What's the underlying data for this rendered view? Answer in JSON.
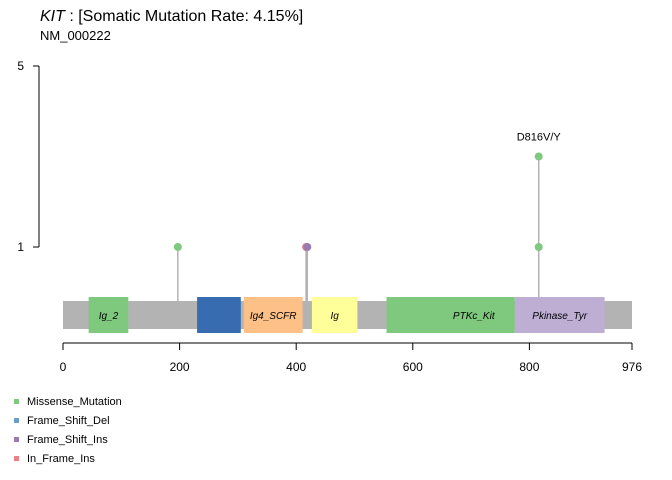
{
  "header": {
    "gene": "KIT",
    "title_rest": ": [Somatic Mutation Rate: 4.15%]",
    "subtitle": "NM_000222"
  },
  "legend": {
    "items": [
      {
        "label": "Missense_Mutation",
        "color": "#7fc97f"
      },
      {
        "label": "Frame_Shift_Del",
        "color": "#6a9ec8"
      },
      {
        "label": "Frame_Shift_Ins",
        "color": "#9a7bb0"
      },
      {
        "label": "In_Frame_Ins",
        "color": "#e8838a"
      }
    ]
  },
  "chart_data": {
    "type": "lollipop",
    "protein_length": 976,
    "x_ticks": [
      0,
      200,
      400,
      600,
      800,
      976
    ],
    "y_ticks": [
      1,
      5
    ],
    "backbone_color": "#b3b3b3",
    "domains": [
      {
        "name": "Ig_2",
        "start": 44,
        "end": 112,
        "color": "#7fc97f"
      },
      {
        "name": "",
        "start": 230,
        "end": 305,
        "color": "#386cb0"
      },
      {
        "name": "Ig4_SCFR",
        "start": 310,
        "end": 411,
        "color": "#fdc086"
      },
      {
        "name": "Ig",
        "start": 427,
        "end": 505,
        "color": "#ffff99"
      },
      {
        "name": "PTKc_Kit",
        "start": 555,
        "end": 775,
        "color": "#7fc97f"
      },
      {
        "name": "Pkinase_Tyr",
        "start": 775,
        "end": 929,
        "color": "#beaed4"
      }
    ],
    "mutations": [
      {
        "position": 197,
        "count": 1,
        "label": "",
        "color": "#7fc97f"
      },
      {
        "position": 417,
        "count": 1,
        "label": "",
        "color": "#e8838a"
      },
      {
        "position": 419,
        "count": 1,
        "label": "",
        "color": "#9a7bb0"
      },
      {
        "position": 816,
        "count": 1,
        "label": "",
        "color": "#7fc97f"
      },
      {
        "position": 816,
        "count": 3,
        "label": "D816V/Y",
        "color": "#7fc97f"
      }
    ]
  }
}
